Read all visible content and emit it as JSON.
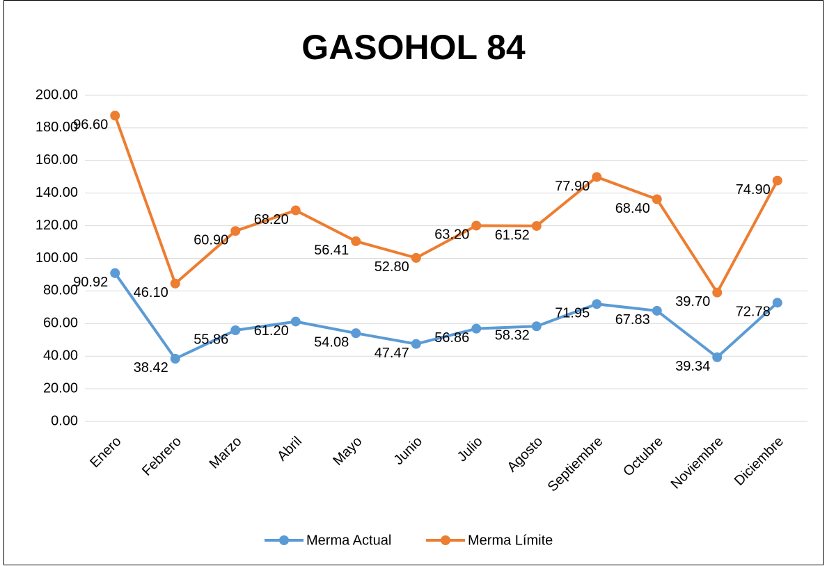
{
  "chart_data": {
    "type": "line",
    "stacked": true,
    "title": "GASOHOL 84",
    "categories": [
      "Enero",
      "Febrero",
      "Marzo",
      "Abril",
      "Mayo",
      "Junio",
      "Julio",
      "Agosto",
      "Septiembre",
      "Octubre",
      "Noviembre",
      "Diciembre"
    ],
    "series": [
      {
        "name": "Merma Actual",
        "color": "#5b9bd5",
        "values": [
          90.92,
          38.42,
          55.86,
          61.2,
          54.08,
          47.47,
          56.86,
          58.32,
          71.95,
          67.83,
          39.34,
          72.78
        ],
        "value_labels": [
          "90.92",
          "38.42",
          "55.86",
          "61.20",
          "54.08",
          "47.47",
          "56.86",
          "58.32",
          "71.95",
          "67.83",
          "39.34",
          "72.78"
        ]
      },
      {
        "name": "Merma Límite",
        "color": "#ed7d31",
        "values": [
          96.6,
          46.1,
          60.9,
          68.2,
          56.41,
          52.8,
          63.2,
          61.52,
          77.9,
          68.4,
          39.7,
          74.9
        ],
        "value_labels": [
          "96.60",
          "46.10",
          "60.90",
          "68.20",
          "56.41",
          "52.80",
          "63.20",
          "61.52",
          "77.90",
          "68.40",
          "39.70",
          "74.90"
        ]
      }
    ],
    "ylim": [
      0,
      200
    ],
    "yticks": [
      {
        "value": 0,
        "label": "0.00"
      },
      {
        "value": 20,
        "label": "20.00"
      },
      {
        "value": 40,
        "label": "40.00"
      },
      {
        "value": 60,
        "label": "60.00"
      },
      {
        "value": 80,
        "label": "80.00"
      },
      {
        "value": 100,
        "label": "100.00"
      },
      {
        "value": 120,
        "label": "120.00"
      },
      {
        "value": 140,
        "label": "140.00"
      },
      {
        "value": 160,
        "label": "160.00"
      },
      {
        "value": 180,
        "label": "180.00"
      },
      {
        "value": 200,
        "label": "200.00"
      }
    ],
    "grid": true,
    "legend": "bottom"
  }
}
